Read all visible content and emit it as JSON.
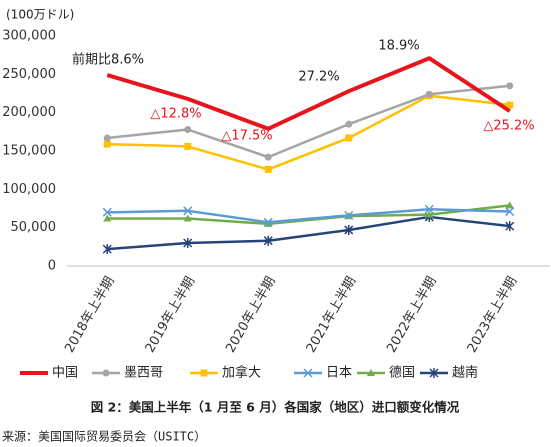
{
  "chart_data": {
    "type": "line",
    "unit_label": "(100万ドル)",
    "categories": [
      "2018年上半期",
      "2019年上半期",
      "2020年上半期",
      "2021年上半期",
      "2022年上半期",
      "2023年上半期"
    ],
    "series": [
      {
        "name": "中国",
        "color": "#e8141b",
        "marker": "none",
        "width": 4,
        "values": [
          249000,
          218000,
          179000,
          228000,
          271000,
          202000
        ]
      },
      {
        "name": "墨西哥",
        "color": "#a5a5a5",
        "marker": "circle",
        "width": 2.5,
        "values": [
          167000,
          178000,
          142000,
          185000,
          224000,
          235000
        ]
      },
      {
        "name": "加拿大",
        "color": "#ffc000",
        "marker": "square",
        "width": 2.5,
        "values": [
          159000,
          156000,
          126000,
          167000,
          222000,
          210000
        ]
      },
      {
        "name": "日本",
        "color": "#5b9bd5",
        "marker": "x",
        "width": 2.5,
        "values": [
          70000,
          72000,
          57000,
          66000,
          74000,
          71000
        ]
      },
      {
        "name": "德国",
        "color": "#70ad47",
        "marker": "triangle",
        "width": 2.5,
        "values": [
          62000,
          62000,
          55000,
          65000,
          67000,
          79000
        ]
      },
      {
        "name": "越南",
        "color": "#264478",
        "marker": "star",
        "width": 2.5,
        "values": [
          22000,
          30000,
          33000,
          47000,
          64000,
          52000
        ]
      }
    ],
    "annotations": [
      {
        "text": "前期比8.6%",
        "color": "#222222"
      },
      {
        "text": "△12.8%",
        "color": "#e8141b"
      },
      {
        "text": "△17.5%",
        "color": "#e8141b"
      },
      {
        "text": "27.2%",
        "color": "#222222"
      },
      {
        "text": "18.9%",
        "color": "#222222"
      },
      {
        "text": "△25.2%",
        "color": "#e8141b"
      }
    ],
    "ylim": [
      0,
      300000
    ],
    "yticks": [
      0,
      {
        "value": 50000,
        "label": "50,000"
      },
      {
        "value": 100000,
        "label": "100,000"
      },
      {
        "value": 150000,
        "label": "150,000"
      },
      {
        "value": 200000,
        "label": "200,000"
      },
      {
        "value": 250000,
        "label": "250,000"
      },
      {
        "value": 300000,
        "label": "300,000"
      }
    ],
    "caption": "図 2：美国上半年（1 月至 6 月）各国家（地区）进口额变化情况",
    "source": "来源：美国国际贸易委员会（USITC）"
  }
}
